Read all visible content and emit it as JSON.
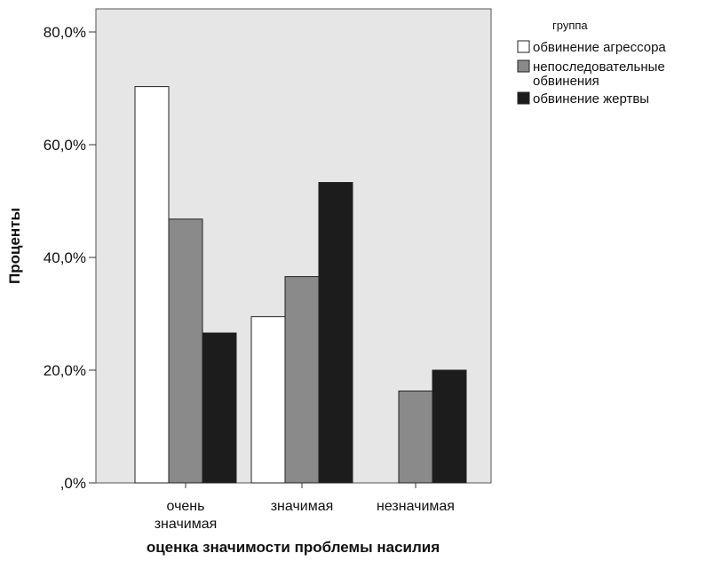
{
  "chart_data": {
    "type": "bar",
    "categories": [
      "очень значимая",
      "значимая",
      "незначимая"
    ],
    "category_label_lines": [
      [
        "очень",
        "значимая"
      ],
      [
        "значимая"
      ],
      [
        "незначимая"
      ]
    ],
    "series": [
      {
        "name": "обвинение агрессора",
        "values": [
          70.3,
          29.5,
          0
        ],
        "color": "#ffffff"
      },
      {
        "name": "непоследовательные обвинения",
        "name_lines": [
          "непоследовательные",
          "обвинения"
        ],
        "values": [
          46.8,
          36.6,
          16.3
        ],
        "color": "#8a8a8a"
      },
      {
        "name": "обвинение жертвы",
        "values": [
          26.6,
          53.3,
          20.0
        ],
        "color": "#1c1c1c"
      }
    ],
    "xlabel": "оценка значимости проблемы насилия",
    "ylabel": "Проценты",
    "ylim": [
      0,
      80
    ],
    "yticks": [
      0,
      20,
      40,
      60,
      80
    ],
    "ytick_labels": [
      ",0%",
      "20,0%",
      "40,0%",
      "60,0%",
      "80,0%"
    ],
    "legend_title": "группа",
    "legend_position": "top-right",
    "grid": false,
    "plot_background": "#e6e6e6"
  }
}
